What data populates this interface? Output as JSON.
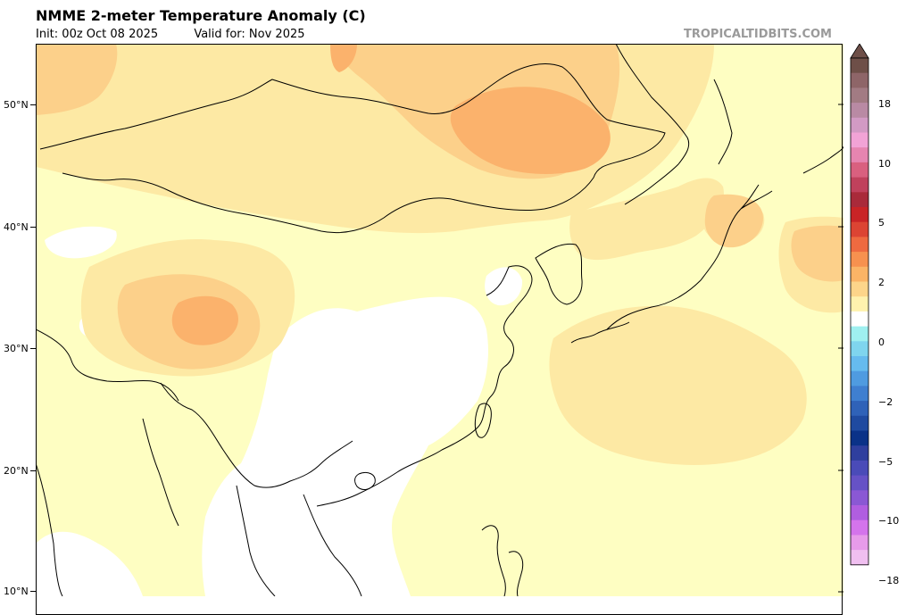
{
  "header": {
    "title": "NMME 2-meter Temperature Anomaly (C)",
    "init": "Init: 00z Oct 08 2025",
    "valid": "Valid for: Nov 2025",
    "source": "TROPICALTIDBITS.COM"
  },
  "map": {
    "region": "East Asia",
    "lat_labels": [
      "50°N",
      "40°N",
      "30°N",
      "20°N",
      "10°N"
    ]
  },
  "colorbar": {
    "labels": [
      "18",
      "10",
      "5",
      "2",
      "0",
      "−2",
      "−5",
      "−10",
      "−18"
    ],
    "colors_top_to_bottom": [
      "#6e4f48",
      "#8e6568",
      "#a27b83",
      "#b98aa4",
      "#d29ac4",
      "#f2a3d6",
      "#e685b0",
      "#d9607f",
      "#c0415c",
      "#a92a3a",
      "#c92426",
      "#dc4433",
      "#ee6a40",
      "#f7914f",
      "#fbb466",
      "#fdd58a",
      "#fff2ae",
      "#ffffff",
      "#9ff0f0",
      "#7fd5ee",
      "#66bbee",
      "#4f9be0",
      "#3f7fd0",
      "#2f62b8",
      "#1f4aa0",
      "#0a3288",
      "#2f3f9e",
      "#4a4bb8",
      "#6652c6",
      "#8a58d4",
      "#b05ee0",
      "#d474ec",
      "#e79bea",
      "#f0bff0"
    ],
    "anomaly_colors": {
      "warm_1": "#fefec2",
      "warm_2": "#fde9a4",
      "warm_3": "#fcd08a",
      "warm_4": "#fbb26c",
      "neutral": "#ffffff"
    }
  }
}
